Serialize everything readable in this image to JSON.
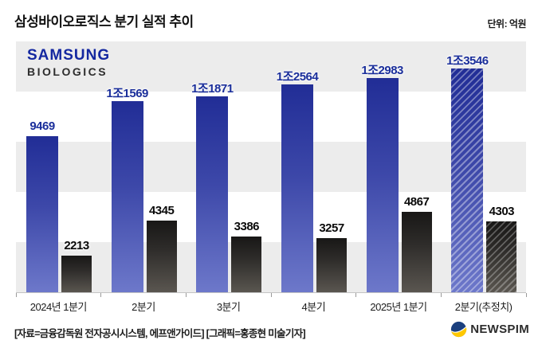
{
  "header": {
    "title": "삼성바이오로직스 분기 실적 추이",
    "unit_label": "단위: 억원"
  },
  "logo": {
    "samsung": "SAMSUNG",
    "biologics": "BIOLOGICS"
  },
  "chart_data": {
    "type": "bar",
    "title": "삼성바이오로직스 분기 실적 추이",
    "unit": "억원",
    "categories": [
      "2024년 1분기",
      "2분기",
      "3분기",
      "4분기",
      "2025년 1분기",
      "2분기(추정치)"
    ],
    "series": [
      {
        "name": "blue-series",
        "values": [
          9469,
          11569,
          11871,
          12564,
          12983,
          13546
        ],
        "labels": [
          "9469",
          "1조1569",
          "1조1871",
          "1조2564",
          "1조2983",
          "1조3546"
        ],
        "last_is_estimate_hatched": true
      },
      {
        "name": "dark-series",
        "values": [
          2213,
          4345,
          3386,
          3257,
          4867,
          4303
        ],
        "labels": [
          "2213",
          "4345",
          "3386",
          "3257",
          "4867",
          "4303"
        ],
        "last_is_estimate_hatched": true
      }
    ],
    "ylim": [
      0,
      13546
    ],
    "grid": "alternating horizontal bands",
    "legend": "none"
  },
  "colors": {
    "samsung_blue": "#1428a0",
    "bar_blue_top": "#212d96",
    "bar_blue_bottom": "#6d78ca",
    "bar_dark_top": "#181716",
    "bar_dark_bottom": "#5a5650",
    "blue_label": "#1b2f9b",
    "stripe_gray": "#ececec",
    "newspim_navy": "#1b3f7e",
    "newspim_yellow": "#ffc800"
  },
  "footer": {
    "source": "[자료=금융감독원 전자공시시스템, 에프앤가이드] [그래픽=홍종현 미술기자]",
    "brand": "NEWSPIM"
  }
}
